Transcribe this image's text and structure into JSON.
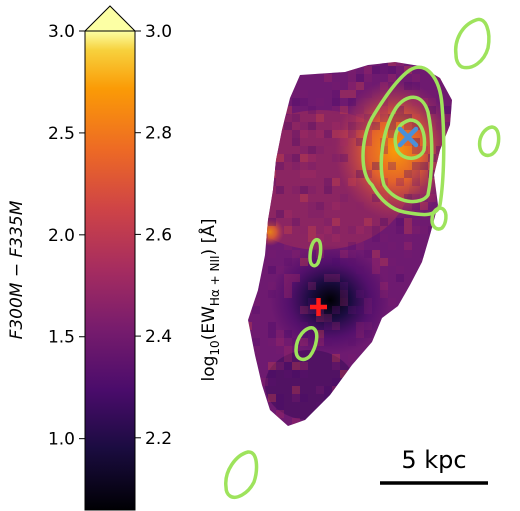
{
  "chart_data": {
    "type": "heatmap",
    "colormap": "inferno",
    "colorbar": {
      "left_axis": {
        "label": "F300M − F335M",
        "range": [
          0.65,
          3.0
        ],
        "ticks": [
          1.0,
          1.5,
          2.0,
          2.5,
          3.0
        ],
        "tick_labels": [
          "1.0",
          "1.5",
          "2.0",
          "2.5",
          "3.0"
        ]
      },
      "right_axis": {
        "label_prefix": "log",
        "label_log_base": "10",
        "label_body": "(EW",
        "label_subscript": "Hα + NII",
        "label_suffix": ") [Å]",
        "range": [
          2.058,
          3.0
        ],
        "ticks": [
          2.2,
          2.4,
          2.6,
          2.8,
          3.0
        ],
        "tick_labels": [
          "2.2",
          "2.4",
          "2.6",
          "2.8",
          "3.0"
        ]
      },
      "extend": "max"
    },
    "markers": [
      {
        "name": "cross",
        "symbol": "x",
        "color": "#4a90d9"
      },
      {
        "name": "plus",
        "symbol": "+",
        "color": "#ff1a1a"
      }
    ],
    "contour_color": "#9ee35c",
    "scale_bar": {
      "label": "5 kpc"
    }
  }
}
